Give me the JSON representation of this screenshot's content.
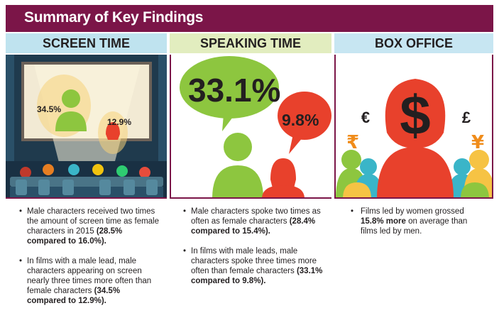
{
  "header": {
    "title": "Summary of Key Findings"
  },
  "columns": {
    "screen_time": {
      "heading": "SCREEN TIME",
      "male_pct": "34.5%",
      "female_pct": "12.9%",
      "bullets": [
        {
          "text": "Male characters received two times the amount of screen time as female characters in 2015",
          "strong": "(28.5% compared to 16.0%)."
        },
        {
          "text": "In films with a male lead, male characters appearing on screen nearly three times more often than female characters",
          "strong": "(34.5% compared to 12.9%)."
        }
      ]
    },
    "speaking_time": {
      "heading": "SPEAKING TIME",
      "male_pct": "33.1%",
      "female_pct": "9.8%",
      "bullets": [
        {
          "text": "Male characters spoke two times as often as female characters",
          "strong": "(28.4% compared to 15.4%)."
        },
        {
          "text": "In films with male leads, male characters spoke three times more often than female characters",
          "strong": "(33.1% compared to 9.8%)."
        }
      ]
    },
    "box_office": {
      "heading": "BOX OFFICE",
      "symbols": {
        "dollar": "$",
        "euro": "€",
        "pound": "£",
        "rupee": "₹",
        "yen": "¥"
      },
      "bullets": [
        {
          "prefix": "Films led by women grossed",
          "strong": "15.8% more",
          "suffix": "on average than films led by men."
        }
      ]
    }
  },
  "colors": {
    "brand": "#7b1548",
    "male_green": "#8dc63f",
    "female_red": "#e8412c",
    "theater_blue": "#1f3a4d"
  },
  "icons": [
    "cinema-screen-icon",
    "audience-seats-icon",
    "speech-bubble-icon",
    "person-silhouette-icon",
    "currency-icon"
  ]
}
